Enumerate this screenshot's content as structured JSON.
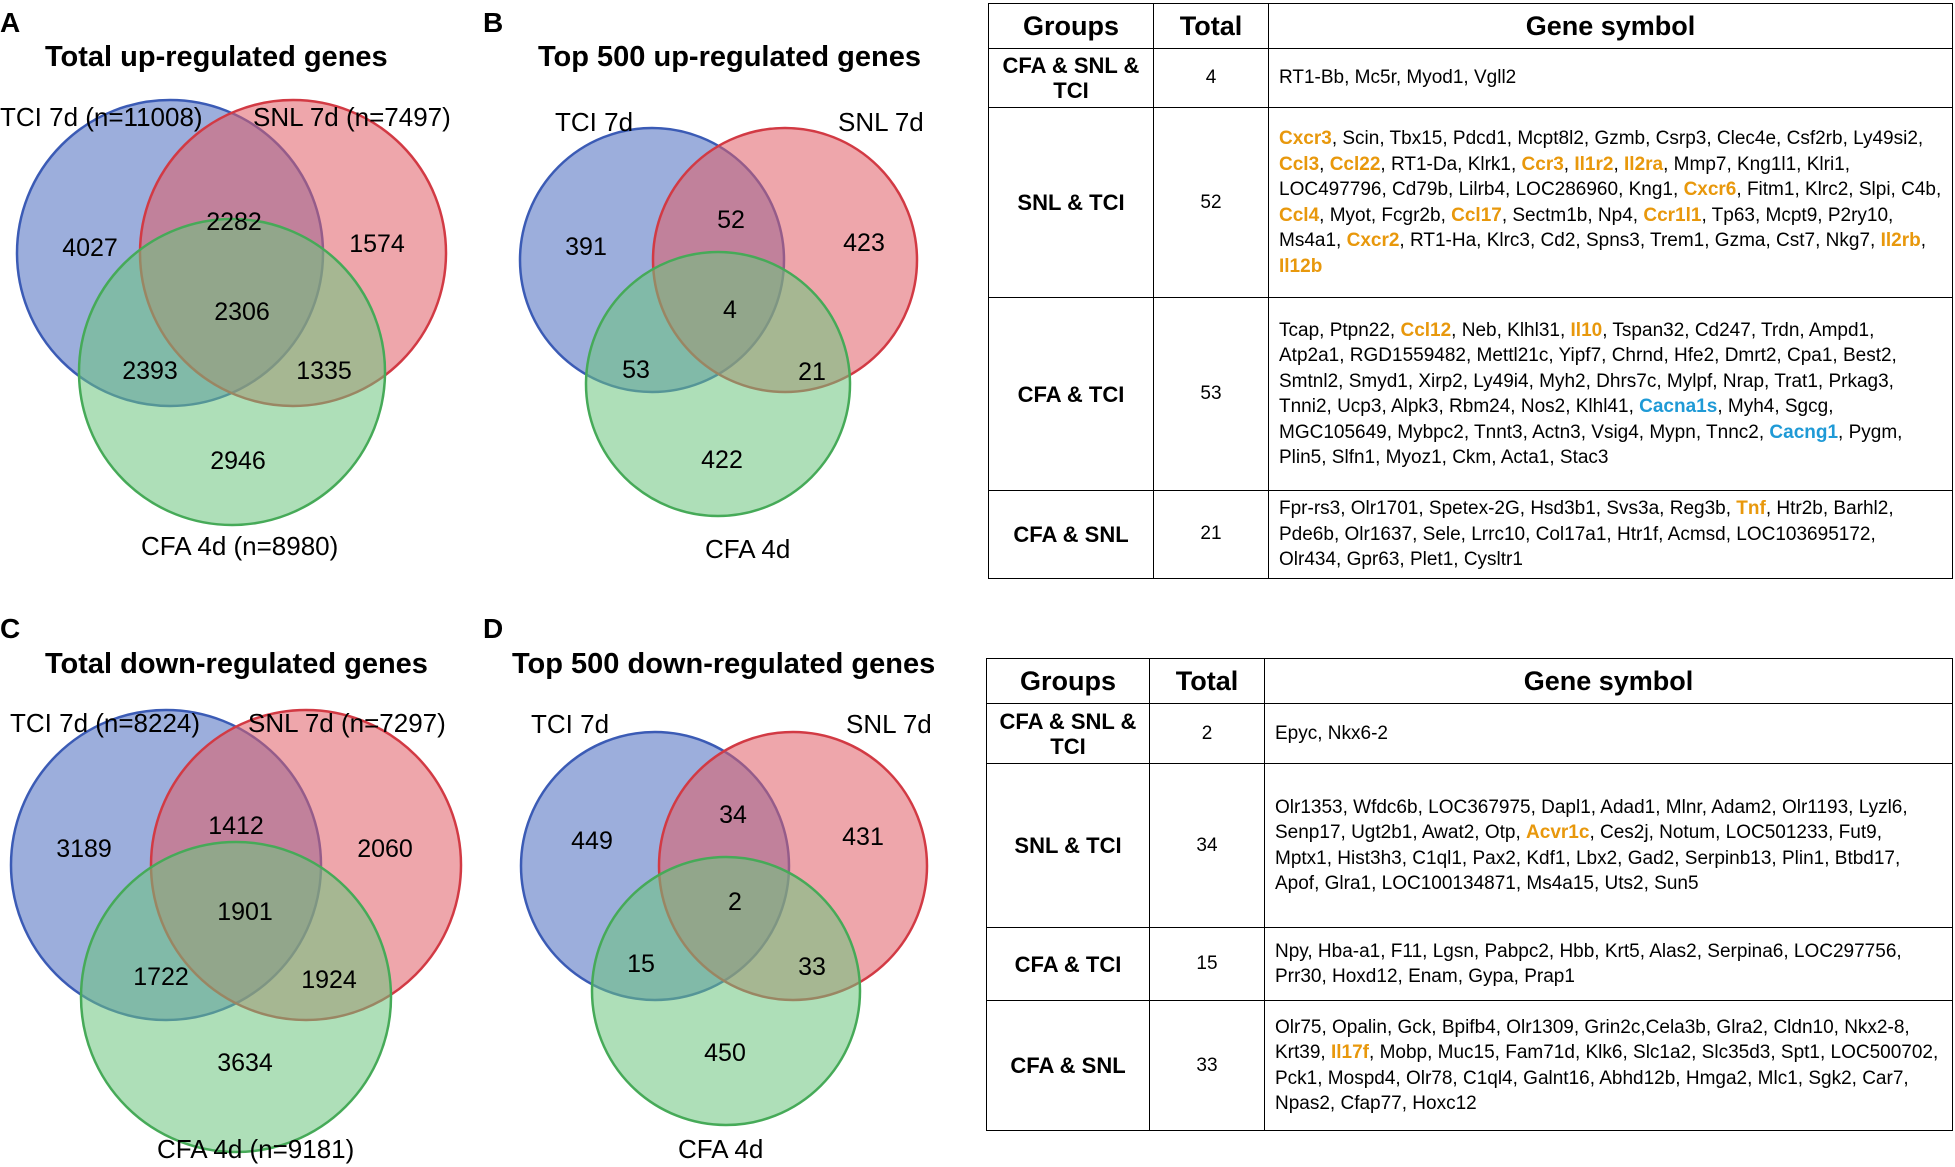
{
  "colors": {
    "blue": "#4a6bbf",
    "red": "#e05d66",
    "green": "#6cc47d",
    "orange": "#e8980c",
    "cyan": "#1f9ad6"
  },
  "panels": {
    "a": {
      "letter": "A",
      "title": "Total up-regulated genes",
      "sets": {
        "tci": "TCI 7d (n=11008)",
        "snl": "SNL 7d (n=7497)",
        "cfa": "CFA 4d (n=8980)"
      },
      "counts": {
        "tci_only": "4027",
        "tci_snl": "2282",
        "snl_only": "1574",
        "all": "2306",
        "tci_cfa": "2393",
        "snl_cfa": "1335",
        "cfa_only": "2946"
      }
    },
    "b": {
      "letter": "B",
      "title": "Top 500 up-regulated genes",
      "sets": {
        "tci": "TCI 7d",
        "snl": "SNL 7d",
        "cfa": "CFA 4d"
      },
      "counts": {
        "tci_only": "391",
        "tci_snl": "52",
        "snl_only": "423",
        "all": "4",
        "tci_cfa": "53",
        "snl_cfa": "21",
        "cfa_only": "422"
      }
    },
    "c": {
      "letter": "C",
      "title": "Total down-regulated genes",
      "sets": {
        "tci": "TCI 7d (n=8224)",
        "snl": "SNL 7d (n=7297)",
        "cfa": "CFA 4d (n=9181)"
      },
      "counts": {
        "tci_only": "3189",
        "tci_snl": "1412",
        "snl_only": "2060",
        "all": "1901",
        "tci_cfa": "1722",
        "snl_cfa": "1924",
        "cfa_only": "3634"
      }
    },
    "d": {
      "letter": "D",
      "title": "Top 500 down-regulated genes",
      "sets": {
        "tci": "TCI 7d",
        "snl": "SNL 7d",
        "cfa": "CFA 4d"
      },
      "counts": {
        "tci_only": "449",
        "tci_snl": "34",
        "snl_only": "431",
        "all": "2",
        "tci_cfa": "15",
        "snl_cfa": "33",
        "cfa_only": "450"
      }
    }
  },
  "tables": {
    "headers": {
      "groups": "Groups",
      "total": "Total",
      "symbol": "Gene symbol"
    },
    "up": {
      "rows": [
        {
          "group": "CFA & SNL & TCI",
          "total": "4",
          "genes": [
            {
              "t": "RT1-Bb, Mc5r, Myod1, Vgll2"
            }
          ]
        },
        {
          "group": "SNL & TCI",
          "total": "52",
          "genes": [
            {
              "t": "Cxcr3",
              "c": "o"
            },
            {
              "t": ",  Scin, Tbx15, Pdcd1, Mcpt8l2, Gzmb, Csrp3, Clec4e, Csf2rb, Ly49si2, "
            },
            {
              "t": "Ccl3",
              "c": "o"
            },
            {
              "t": ", "
            },
            {
              "t": "Ccl22",
              "c": "o"
            },
            {
              "t": ", RT1-Da, Klrk1, "
            },
            {
              "t": "Ccr3",
              "c": "o"
            },
            {
              "t": ", "
            },
            {
              "t": "Il1r2",
              "c": "o"
            },
            {
              "t": ", "
            },
            {
              "t": "Il2ra",
              "c": "o"
            },
            {
              "t": ", Mmp7, Kng1l1, Klri1, LOC497796, Cd79b, Lilrb4, LOC286960, Kng1, "
            },
            {
              "t": "Cxcr6",
              "c": "o"
            },
            {
              "t": ", Fitm1, Klrc2, Slpi, C4b, "
            },
            {
              "t": "Ccl4",
              "c": "o"
            },
            {
              "t": ", Myot, Fcgr2b, "
            },
            {
              "t": "Ccl17",
              "c": "o"
            },
            {
              "t": ", Sectm1b, Np4, "
            },
            {
              "t": "Ccr1l1",
              "c": "o"
            },
            {
              "t": ", Tp63, Mcpt9, P2ry10, Ms4a1, "
            },
            {
              "t": "Cxcr2",
              "c": "o"
            },
            {
              "t": ", RT1-Ha, Klrc3, Cd2, Spns3, Trem1,  Gzma, Cst7, Nkg7, "
            },
            {
              "t": "Il2rb",
              "c": "o"
            },
            {
              "t": ", "
            },
            {
              "t": "Il12b",
              "c": "o"
            }
          ]
        },
        {
          "group": "CFA & TCI",
          "total": "53",
          "genes": [
            {
              "t": "Tcap, Ptpn22, "
            },
            {
              "t": "Ccl12",
              "c": "o"
            },
            {
              "t": ", Neb, Klhl31, "
            },
            {
              "t": "Il10",
              "c": "o"
            },
            {
              "t": ", Tspan32, Cd247, Trdn, Ampd1, Atp2a1, RGD1559482, Mettl21c, Yipf7, Chrnd, Hfe2, Dmrt2, Cpa1, Best2, Smtnl2, Smyd1, Xirp2, Ly49i4, Myh2, Dhrs7c, Mylpf, Nrap, Trat1, Prkag3, Tnni2, Ucp3, Alpk3, Rbm24, Nos2, Klhl41, "
            },
            {
              "t": "Cacna1s",
              "c": "b"
            },
            {
              "t": ", Myh4, Sgcg, MGC105649, Mybpc2, Tnnt3, Actn3, Vsig4, Mypn, Tnnc2, "
            },
            {
              "t": "Cacng1",
              "c": "b"
            },
            {
              "t": ", Pygm, Plin5, Slfn1, Myoz1, Ckm, Acta1, Stac3"
            }
          ]
        },
        {
          "group": "CFA & SNL",
          "total": "21",
          "genes": [
            {
              "t": "Fpr-rs3, Olr1701, Spetex-2G, Hsd3b1, Svs3a, Reg3b, "
            },
            {
              "t": "Tnf",
              "c": "o"
            },
            {
              "t": ", Htr2b, Barhl2, Pde6b, Olr1637, Sele, Lrrc10, Col17a1, Htr1f, Acmsd, LOC103695172, Olr434, Gpr63, Plet1, Cysltr1"
            }
          ]
        }
      ]
    },
    "down": {
      "rows": [
        {
          "group": "CFA & SNL & TCI",
          "total": "2",
          "genes": [
            {
              "t": "Epyc, Nkx6-2"
            }
          ]
        },
        {
          "group": "SNL & TCI",
          "total": "34",
          "genes": [
            {
              "t": "Olr1353, Wfdc6b, LOC367975, Dapl1, Adad1, Mlnr, Adam2, Olr1193, Lyzl6, Senp17, Ugt2b1, Awat2, Otp, "
            },
            {
              "t": "Acvr1c",
              "c": "o"
            },
            {
              "t": ", Ces2j, Notum, LOC501233, Fut9, Mptx1, Hist3h3, C1ql1, Pax2, Kdf1, Lbx2, Gad2, Serpinb13, Plin1, Btbd17, Apof, Glra1, LOC100134871, Ms4a15, Uts2, Sun5"
            }
          ]
        },
        {
          "group": "CFA & TCI",
          "total": "15",
          "genes": [
            {
              "t": "Npy, Hba-a1, F11, Lgsn, Pabpc2, Hbb, Krt5, Alas2, Serpina6, LOC297756, Prr30, Hoxd12, Enam, Gypa, Prap1"
            }
          ]
        },
        {
          "group": "CFA & SNL",
          "total": "33",
          "genes": [
            {
              "t": "Olr75, Opalin, Gck, Bpifb4, Olr1309, Grin2c,Cela3b, Glra2, Cldn10, Nkx2-8, Krt39, "
            },
            {
              "t": "Il17f",
              "c": "o"
            },
            {
              "t": ", Mobp, Muc15, Fam71d, Klk6, Slc1a2, Slc35d3, Spt1, LOC500702, Pck1, Mospd4, Olr78, C1ql4, Galnt16, Abhd12b, Hmga2, Mlc1, Sgk2, Car7, Npas2, Cfap77, Hoxc12"
            }
          ]
        }
      ]
    }
  }
}
